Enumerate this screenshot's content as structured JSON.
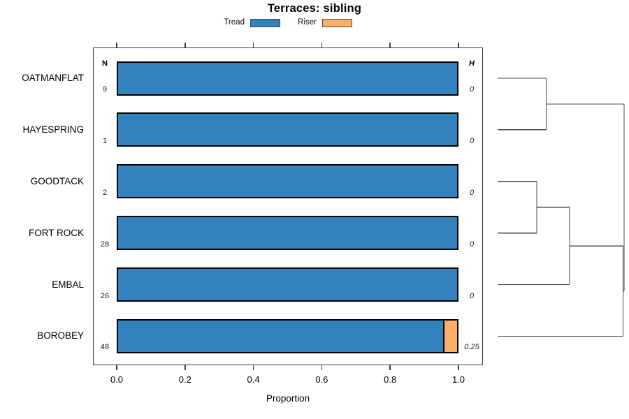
{
  "window": {
    "background": "#ffffff"
  },
  "chart_data": {
    "type": "bar",
    "orientation": "horizontal",
    "stacked": true,
    "title": "Terraces: sibling",
    "xlabel": "Proportion",
    "xlim": [
      0,
      1.04
    ],
    "xticks": [
      "0.0",
      "0.2",
      "0.4",
      "0.6",
      "0.8",
      "1.0"
    ],
    "xtick_values": [
      0,
      0.2,
      0.4,
      0.6,
      0.8,
      1.0
    ],
    "grid": false,
    "legend_position": "top",
    "legend": [
      {
        "label": "Tread",
        "color": "#3182bd"
      },
      {
        "label": "Riser",
        "color": "#fdae6b"
      }
    ],
    "categories": [
      "OATMANFLAT",
      "HAYESPRING",
      "GOODTACK",
      "FORT ROCK",
      "EMBAL",
      "BOROBEY"
    ],
    "series": [
      {
        "name": "Tread",
        "color": "#3182bd",
        "values": [
          1,
          1,
          1,
          1,
          1,
          0.958
        ]
      },
      {
        "name": "Riser",
        "color": "#fdae6b",
        "values": [
          0,
          0,
          0,
          0,
          0,
          0.042
        ]
      }
    ],
    "n_column": {
      "header": "N",
      "values": [
        "9",
        "1",
        "2",
        "28",
        "26",
        "48"
      ]
    },
    "h_column": {
      "header": "H",
      "values": [
        "0",
        "0",
        "0",
        "0",
        "0",
        "0.25"
      ]
    },
    "dendrogram": {
      "side": "right",
      "leaf_order": [
        "OATMANFLAT",
        "HAYESPRING",
        "GOODTACK",
        "FORT ROCK",
        "EMBAL",
        "BOROBEY"
      ],
      "tree": {
        "height": 1.0,
        "children": [
          {
            "height": 0.384,
            "children": [
              {
                "leaf": 0
              },
              {
                "leaf": 1
              }
            ]
          },
          {
            "height": 0.992,
            "children": [
              {
                "height": 0.569,
                "children": [
                  {
                    "height": 0.309,
                    "children": [
                      {
                        "leaf": 2
                      },
                      {
                        "leaf": 3
                      }
                    ]
                  },
                  {
                    "leaf": 4
                  }
                ]
              },
              {
                "leaf": 5
              }
            ]
          }
        ]
      }
    },
    "colors": {
      "bar_border": "#000000",
      "axis": "#3c3c3c",
      "dendrogram_line": "#4a4a4a",
      "text": "#000000"
    }
  }
}
